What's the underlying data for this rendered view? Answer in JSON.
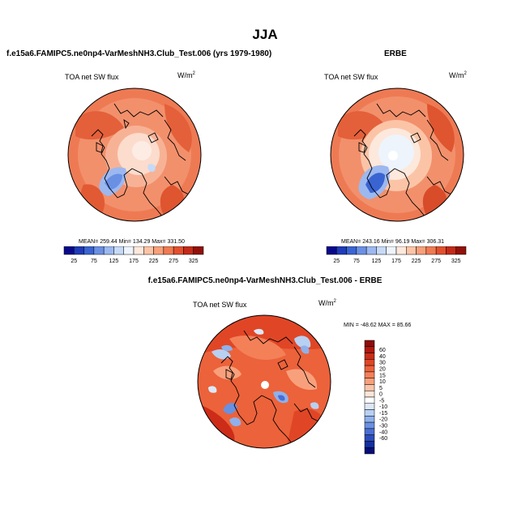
{
  "page": {
    "title": "JJA"
  },
  "panels": {
    "left": {
      "title": "f.e15a6.FAMIPC5.ne0np4-VarMeshNH3.Club_Test.006 (yrs 1979-1980)",
      "variable": "TOA net SW flux",
      "units": "W/m",
      "units_exp": "2",
      "stats": "MEAN= 259.44  Min= 134.29  Max= 331.50"
    },
    "right": {
      "title": "ERBE",
      "variable": "TOA net SW flux",
      "units": "W/m",
      "units_exp": "2",
      "stats": "MEAN= 243.16  Min=  96.19  Max= 306.31"
    },
    "diff": {
      "title": "f.e15a6.FAMIPC5.ne0np4-VarMeshNH3.Club_Test.006 - ERBE",
      "variable": "TOA net SW flux",
      "units": "W/m",
      "units_exp": "2",
      "stats": "MIN = -48.62 MAX =  85.66"
    }
  },
  "chart_data": [
    {
      "type": "heatmap",
      "title": "TOA net SW flux",
      "projection": "north-polar-stereographic",
      "units": "W/m2",
      "mean": 259.44,
      "min": 134.29,
      "max": 331.5,
      "colorbar": {
        "orientation": "horizontal",
        "ticks": [
          "25",
          "75",
          "125",
          "175",
          "225",
          "275",
          "325",
          "375"
        ],
        "colors": [
          "#08088a",
          "#1f3bb8",
          "#3a64d2",
          "#6a90e4",
          "#9cb8f0",
          "#c6daf8",
          "#eef4fc",
          "#fde8dc",
          "#fcc4a6",
          "#f7a07a",
          "#f07a52",
          "#e2502e",
          "#c42a18",
          "#92100a"
        ]
      }
    },
    {
      "type": "heatmap",
      "title": "TOA net SW flux",
      "projection": "north-polar-stereographic",
      "units": "W/m2",
      "mean": 243.16,
      "min": 96.19,
      "max": 306.31,
      "colorbar": {
        "orientation": "horizontal",
        "ticks": [
          "25",
          "75",
          "125",
          "175",
          "225",
          "275",
          "325",
          "375"
        ],
        "colors": [
          "#08088a",
          "#1f3bb8",
          "#3a64d2",
          "#6a90e4",
          "#9cb8f0",
          "#c6daf8",
          "#eef4fc",
          "#fde8dc",
          "#fcc4a6",
          "#f7a07a",
          "#f07a52",
          "#e2502e",
          "#c42a18",
          "#92100a"
        ]
      }
    },
    {
      "type": "heatmap",
      "title": "TOA net SW flux",
      "projection": "north-polar-stereographic",
      "units": "W/m2",
      "min": -48.62,
      "max": 85.66,
      "colorbar": {
        "orientation": "vertical",
        "ticks": [
          "60",
          "40",
          "30",
          "20",
          "15",
          "10",
          "5",
          "0",
          "-5",
          "-10",
          "-15",
          "-20",
          "-30",
          "-40",
          "-60"
        ],
        "colors": [
          "#8c0d0a",
          "#b01810",
          "#cc2c18",
          "#e04626",
          "#ec623a",
          "#f48058",
          "#f8a07c",
          "#fbc4a8",
          "#fde6d8",
          "#ffffff",
          "#dce8f8",
          "#b8d0f2",
          "#8fb0ea",
          "#6a90e0",
          "#4a6ed4",
          "#2c4cbc",
          "#1430a0",
          "#060e78"
        ]
      }
    }
  ]
}
